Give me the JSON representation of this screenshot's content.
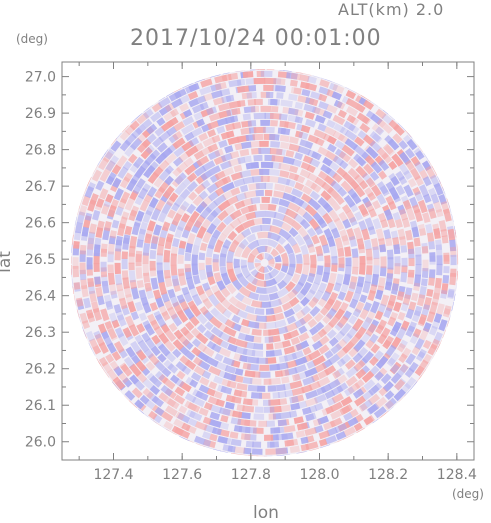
{
  "header": {
    "altitude": "ALT(km) 2.0",
    "timestamp": "2017/10/24 00:01:00"
  },
  "chart_data": {
    "type": "heatmap",
    "title": "2017/10/24 00:01:00",
    "subtitle": "ALT(km) 2.0",
    "xlabel": "lon",
    "ylabel": "lat",
    "x_unit": "(deg)",
    "y_unit": "(deg)",
    "xlim": [
      127.25,
      128.45
    ],
    "ylim": [
      25.95,
      27.04
    ],
    "xticks": [
      "127.4",
      "127.6",
      "127.8",
      "128.0",
      "128.2",
      "128.4"
    ],
    "yticks": [
      "26.0",
      "26.1",
      "26.2",
      "26.3",
      "26.4",
      "26.5",
      "26.6",
      "26.7",
      "26.8",
      "26.9",
      "27.0"
    ],
    "center": {
      "lon": 127.84,
      "lat": 26.49
    },
    "radius_deg_lat": 0.53,
    "grid": false,
    "colors": {
      "positive": "#f5a3a3",
      "negative": "#a8a8f0",
      "axis": "#808080"
    }
  }
}
